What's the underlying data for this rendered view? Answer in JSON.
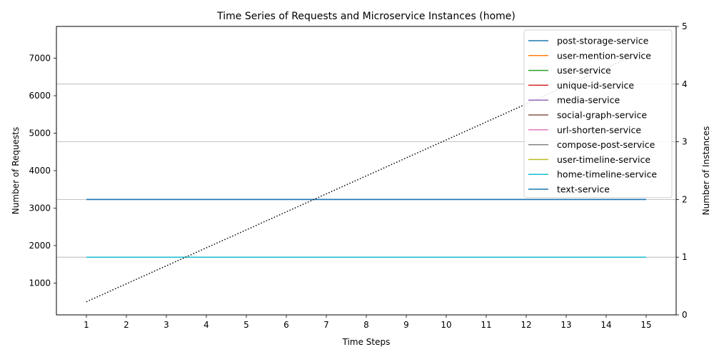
{
  "chart_data": {
    "type": "line",
    "title": "Time Series of Requests and Microservice Instances (home)",
    "xlabel": "Time Steps",
    "ylabel_left": "Number of Requests",
    "ylabel_right": "Number of Instances",
    "x": [
      1,
      2,
      3,
      4,
      5,
      6,
      7,
      8,
      9,
      10,
      11,
      12,
      13,
      14,
      15
    ],
    "xlim": [
      0.25,
      15.75
    ],
    "ylim_left": [
      150,
      7850
    ],
    "ylim_right": [
      0,
      5
    ],
    "yticks_left": [
      1000,
      2000,
      3000,
      4000,
      5000,
      6000,
      7000
    ],
    "yticks_right": [
      0,
      1,
      2,
      3,
      4,
      5
    ],
    "grid": "horizontal-right-axis",
    "legend_position": "top-right",
    "requests": {
      "style": "dotted",
      "color": "#000000",
      "values": [
        500,
        980,
        1460,
        1940,
        2420,
        2900,
        3380,
        3860,
        4340,
        4820,
        5300,
        5780,
        6260,
        6740,
        7220
      ]
    },
    "series": [
      {
        "name": "post-storage-service",
        "color": "#1f77b4",
        "values": [
          2,
          2,
          2,
          2,
          2,
          2,
          2,
          2,
          2,
          2,
          2,
          2,
          2,
          2,
          2
        ]
      },
      {
        "name": "user-mention-service",
        "color": "#ff7f0e",
        "values": [
          1,
          1,
          1,
          1,
          1,
          1,
          1,
          1,
          1,
          1,
          1,
          1,
          1,
          1,
          1
        ]
      },
      {
        "name": "user-service",
        "color": "#2ca02c",
        "values": [
          1,
          1,
          1,
          1,
          1,
          1,
          1,
          1,
          1,
          1,
          1,
          1,
          1,
          1,
          1
        ]
      },
      {
        "name": "unique-id-service",
        "color": "#d62728",
        "values": [
          1,
          1,
          1,
          1,
          1,
          1,
          1,
          1,
          1,
          1,
          1,
          1,
          1,
          1,
          1
        ]
      },
      {
        "name": "media-service",
        "color": "#9467bd",
        "values": [
          1,
          1,
          1,
          1,
          1,
          1,
          1,
          1,
          1,
          1,
          1,
          1,
          1,
          1,
          1
        ]
      },
      {
        "name": "social-graph-service",
        "color": "#8c564b",
        "values": [
          1,
          1,
          1,
          1,
          1,
          1,
          1,
          1,
          1,
          1,
          1,
          1,
          1,
          1,
          1
        ]
      },
      {
        "name": "url-shorten-service",
        "color": "#e377c2",
        "values": [
          1,
          1,
          1,
          1,
          1,
          1,
          1,
          1,
          1,
          1,
          1,
          1,
          1,
          1,
          1
        ]
      },
      {
        "name": "compose-post-service",
        "color": "#7f7f7f",
        "values": [
          1,
          1,
          1,
          1,
          1,
          1,
          1,
          1,
          1,
          1,
          1,
          1,
          1,
          1,
          1
        ]
      },
      {
        "name": "user-timeline-service",
        "color": "#bcbd22",
        "values": [
          1,
          1,
          1,
          1,
          1,
          1,
          1,
          1,
          1,
          1,
          1,
          1,
          1,
          1,
          1
        ]
      },
      {
        "name": "home-timeline-service",
        "color": "#17becf",
        "values": [
          1,
          1,
          1,
          1,
          1,
          1,
          1,
          1,
          1,
          1,
          1,
          1,
          1,
          1,
          1
        ]
      },
      {
        "name": "text-service",
        "color": "#1f77b4",
        "values": [
          2,
          2,
          2,
          2,
          2,
          2,
          2,
          2,
          2,
          2,
          2,
          2,
          2,
          2,
          2
        ]
      }
    ]
  }
}
